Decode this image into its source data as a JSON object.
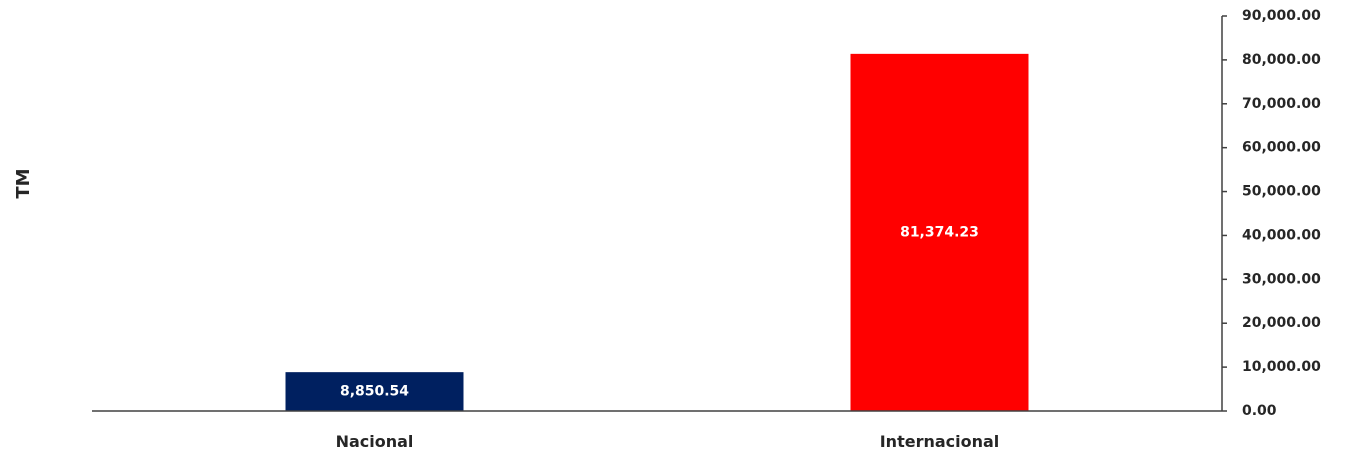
{
  "chart_data": {
    "type": "bar",
    "categories": [
      "Nacional",
      "Internacional"
    ],
    "values": [
      8850.54,
      81374.23
    ],
    "data_labels": [
      "8,850.54",
      "81,374.23"
    ],
    "bar_colors": [
      "#002060",
      "#ff0000"
    ],
    "ylabel": "TM",
    "ylim": [
      0,
      90000
    ],
    "y_ticks": [
      0,
      10000,
      20000,
      30000,
      40000,
      50000,
      60000,
      70000,
      80000,
      90000
    ],
    "y_tick_labels": [
      "0.00",
      "10,000.00",
      "20,000.00",
      "30,000.00",
      "40,000.00",
      "50,000.00",
      "60,000.00",
      "70,000.00",
      "80,000.00",
      "90,000.00"
    ],
    "y_axis_side": "right",
    "grid": false,
    "legend": "none"
  }
}
